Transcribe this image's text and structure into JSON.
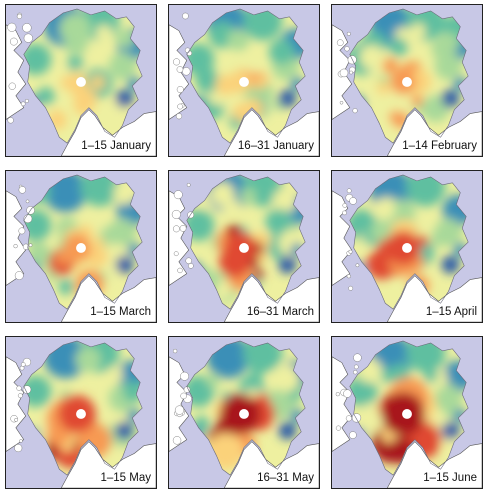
{
  "panels": [
    {
      "label": "1–15 January"
    },
    {
      "label": "16–31 January"
    },
    {
      "label": "1–14 February"
    },
    {
      "label": "1–15 March"
    },
    {
      "label": "16–31 March"
    },
    {
      "label": "1–15 April"
    },
    {
      "label": "1–15 May"
    },
    {
      "label": "16–31 May"
    },
    {
      "label": "1–15 June"
    }
  ],
  "colors": {
    "ocean": "#c8c8e6",
    "land": "#ffffff",
    "scale": [
      "#2c5aa8",
      "#3a8fb7",
      "#5fbfa0",
      "#a8d99a",
      "#eef0a0",
      "#fbd27a",
      "#f79a52",
      "#e04a32",
      "#a8141e"
    ]
  }
}
